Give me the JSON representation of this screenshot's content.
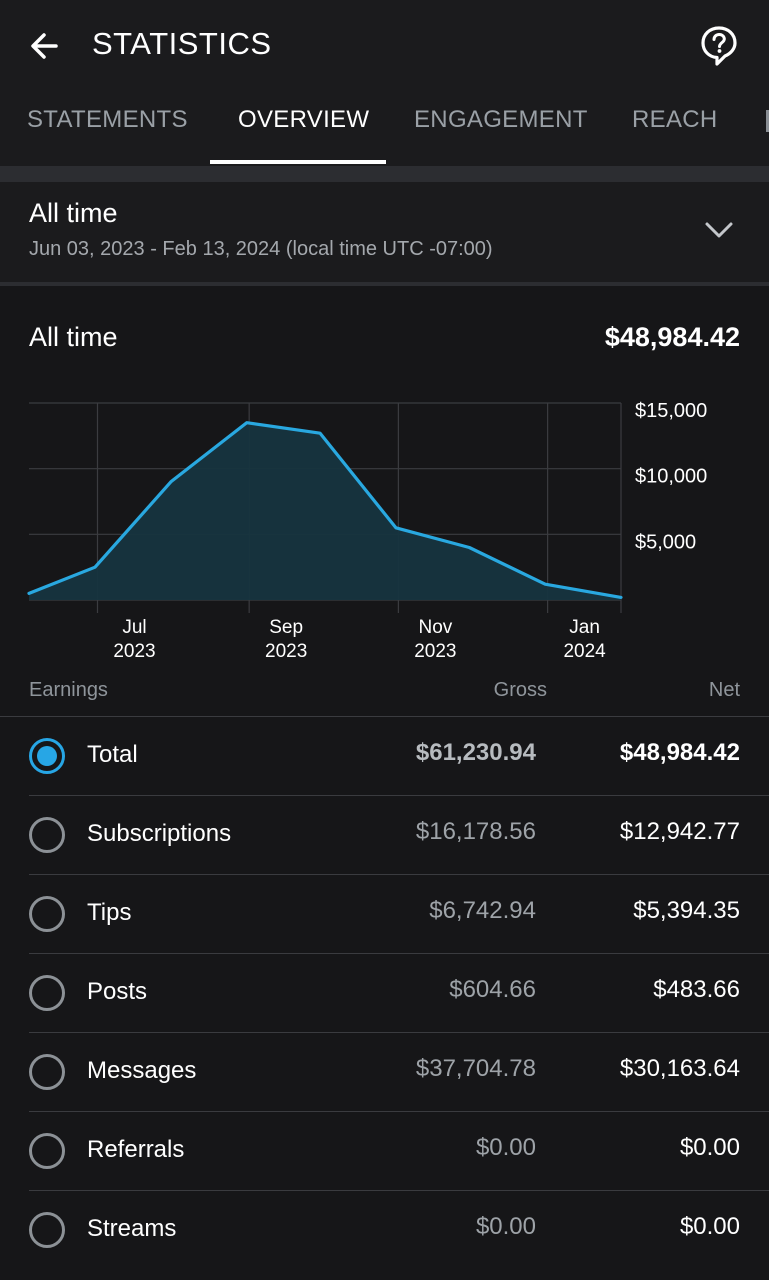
{
  "header": {
    "title": "STATISTICS",
    "back_icon": "arrow-left-icon",
    "help_icon": "help-circle-icon"
  },
  "tabs": [
    {
      "label": "STATEMENTS",
      "active": false
    },
    {
      "label": "OVERVIEW",
      "active": true
    },
    {
      "label": "ENGAGEMENT",
      "active": false
    },
    {
      "label": "REACH",
      "active": false
    }
  ],
  "range": {
    "title": "All time",
    "subtitle": "Jun 03, 2023 - Feb 13, 2024 (local time UTC -07:00)"
  },
  "summary": {
    "label": "All time",
    "value": "$48,984.42"
  },
  "chart_data": {
    "type": "area",
    "x": [
      "2023-06-03",
      "2023-06-30",
      "2023-07-31",
      "2023-08-31",
      "2023-09-30",
      "2023-10-31",
      "2023-11-30",
      "2023-12-31",
      "2024-01-31"
    ],
    "series": [
      {
        "values": [
          500,
          2500,
          9000,
          13500,
          12700,
          5500,
          4000,
          1200,
          200
        ]
      }
    ],
    "x_ticks": [
      {
        "month": "Jul",
        "year": "2023"
      },
      {
        "month": "Sep",
        "year": "2023"
      },
      {
        "month": "Nov",
        "year": "2023"
      },
      {
        "month": "Jan",
        "year": "2024"
      }
    ],
    "y_ticks": [
      "$15,000",
      "$10,000",
      "$5,000"
    ],
    "ylim": [
      0,
      15000
    ],
    "grid": true,
    "line_color": "#29a8e0",
    "fill_color": "#16343f"
  },
  "table": {
    "headers": {
      "earnings": "Earnings",
      "gross": "Gross",
      "net": "Net"
    },
    "rows": [
      {
        "label": "Total",
        "gross": "$61,230.94",
        "net": "$48,984.42",
        "selected": true
      },
      {
        "label": "Subscriptions",
        "gross": "$16,178.56",
        "net": "$12,942.77",
        "selected": false
      },
      {
        "label": "Tips",
        "gross": "$6,742.94",
        "net": "$5,394.35",
        "selected": false
      },
      {
        "label": "Posts",
        "gross": "$604.66",
        "net": "$483.66",
        "selected": false
      },
      {
        "label": "Messages",
        "gross": "$37,704.78",
        "net": "$30,163.64",
        "selected": false
      },
      {
        "label": "Referrals",
        "gross": "$0.00",
        "net": "$0.00",
        "selected": false
      },
      {
        "label": "Streams",
        "gross": "$0.00",
        "net": "$0.00",
        "selected": false
      }
    ]
  },
  "colors": {
    "accent": "#27a6e5",
    "background": "#161618"
  }
}
